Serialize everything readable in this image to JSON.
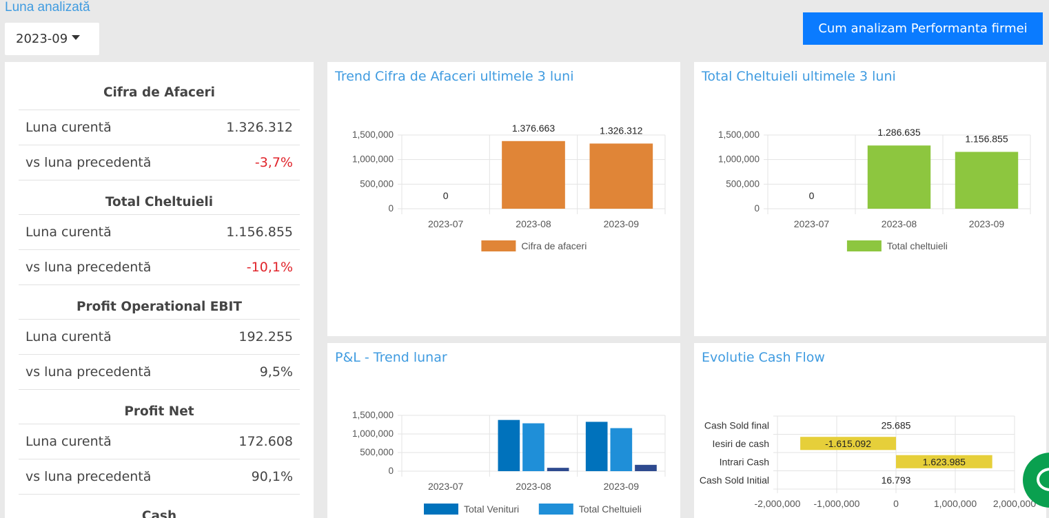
{
  "header": {
    "month_label": "Luna analizată",
    "selected_month": "2023-09",
    "help_button": "Cum analizam Performanta firmei"
  },
  "kpi": {
    "sections": [
      {
        "title": "Cifra de Afaceri",
        "rows": [
          {
            "label": "Luna curentă",
            "value": "1.326.312",
            "negative": false
          },
          {
            "label": "vs luna precedentă",
            "value": "-3,7%",
            "negative": true
          }
        ]
      },
      {
        "title": "Total Cheltuieli",
        "rows": [
          {
            "label": "Luna curentă",
            "value": "1.156.855",
            "negative": false
          },
          {
            "label": "vs luna precedentă",
            "value": "-10,1%",
            "negative": true
          }
        ]
      },
      {
        "title": "Profit Operational EBIT",
        "rows": [
          {
            "label": "Luna curentă",
            "value": "192.255",
            "negative": false
          },
          {
            "label": "vs luna precedentă",
            "value": "9,5%",
            "negative": false
          }
        ]
      },
      {
        "title": "Profit Net",
        "rows": [
          {
            "label": "Luna curentă",
            "value": "172.608",
            "negative": false
          },
          {
            "label": "vs luna precedentă",
            "value": "90,1%",
            "negative": false
          }
        ]
      },
      {
        "title": "Cash",
        "rows": []
      }
    ]
  },
  "colors": {
    "accent": "#3f9be0",
    "button": "#0a7bff",
    "negative": "#e0232a",
    "revenue": "#e08537",
    "expenses": "#8dc63f",
    "pl_venituri": "#0072bc",
    "pl_cheltuieli": "#1f8fd8",
    "pl_profit": "#2e4a8f",
    "cash": "#e6cf3a",
    "chat": "#0aa04f"
  },
  "chart_data": [
    {
      "id": "revenue",
      "type": "bar",
      "title": "Trend Cifra de Afaceri ultimele 3 luni",
      "categories": [
        "2023-07",
        "2023-08",
        "2023-09"
      ],
      "series": [
        {
          "name": "Cifra de afaceri",
          "values": [
            0,
            1376663,
            1326312
          ],
          "labels": [
            "0",
            "1.376.663",
            "1.326.312"
          ]
        }
      ],
      "ylim": [
        0,
        1500000
      ],
      "yticks": [
        "0",
        "500,000",
        "1,000,000",
        "1,500,000"
      ],
      "legend": "bottom"
    },
    {
      "id": "expenses",
      "type": "bar",
      "title": "Total Cheltuieli ultimele 3 luni",
      "categories": [
        "2023-07",
        "2023-08",
        "2023-09"
      ],
      "series": [
        {
          "name": "Total cheltuieli",
          "values": [
            0,
            1286635,
            1156855
          ],
          "labels": [
            "0",
            "1.286.635",
            "1.156.855"
          ]
        }
      ],
      "ylim": [
        0,
        1500000
      ],
      "yticks": [
        "0",
        "500,000",
        "1,000,000",
        "1,500,000"
      ],
      "legend": "bottom"
    },
    {
      "id": "pl",
      "type": "bar",
      "title": "P&L - Trend lunar",
      "categories": [
        "2023-07",
        "2023-08",
        "2023-09"
      ],
      "series": [
        {
          "name": "Total Venituri",
          "values": [
            0,
            1376663,
            1326312
          ]
        },
        {
          "name": "Total Cheltuieli",
          "values": [
            0,
            1286635,
            1156855
          ]
        },
        {
          "name": "",
          "values": [
            0,
            90000,
            170000
          ]
        }
      ],
      "ylim": [
        0,
        1500000
      ],
      "yticks": [
        "0",
        "500,000",
        "1,000,000",
        "1,500,000"
      ],
      "legend": "bottom"
    },
    {
      "id": "cash",
      "type": "bar",
      "orientation": "horizontal",
      "title": "Evolutie Cash Flow",
      "categories": [
        "Cash Sold final",
        "Iesiri de cash",
        "Intrari Cash",
        "Cash Sold Initial"
      ],
      "values": [
        25685,
        -1615092,
        1623985,
        16793
      ],
      "labels": [
        "25.685",
        "-1.615.092",
        "1.623.985",
        "16.793"
      ],
      "xlim": [
        -2000000,
        2000000
      ],
      "xticks": [
        "-2,000,000",
        "-1,000,000",
        "0",
        "1,000,000",
        "2,000,000"
      ]
    }
  ]
}
